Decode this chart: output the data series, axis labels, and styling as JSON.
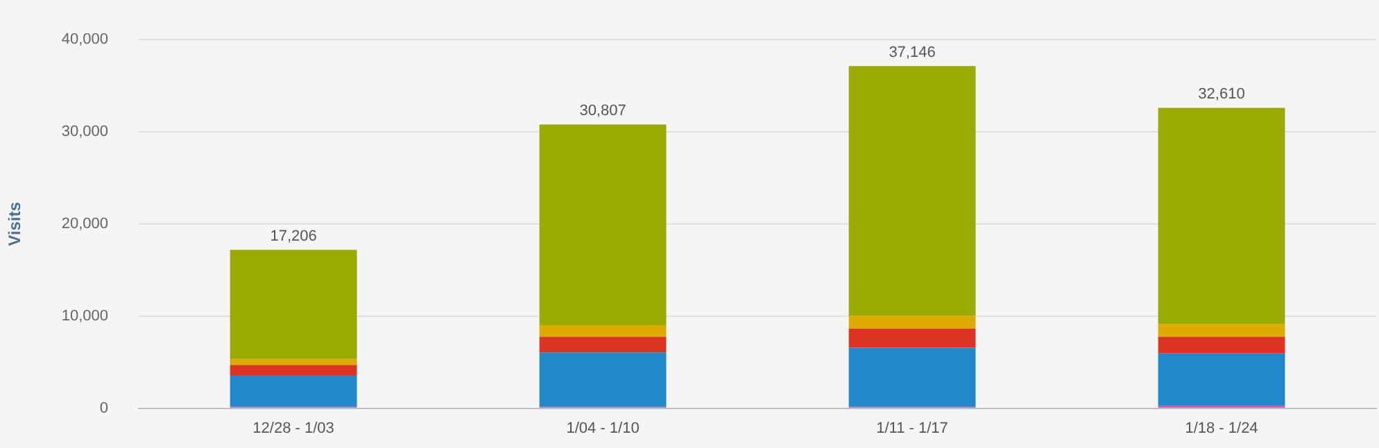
{
  "chart_data": {
    "type": "bar",
    "stacked": true,
    "ylabel": "Visits",
    "categories": [
      "12/28 - 1/03",
      "1/04 - 1/10",
      "1/11 - 1/17",
      "1/18 - 1/24"
    ],
    "series": [
      {
        "color": "#d6469a",
        "values": [
          150,
          150,
          150,
          250
        ]
      },
      {
        "color": "#2288cc",
        "values": [
          3440,
          5910,
          6410,
          5700
        ]
      },
      {
        "color": "#dd3322",
        "values": [
          1110,
          1710,
          2080,
          1820
        ]
      },
      {
        "color": "#ddaa00",
        "values": [
          650,
          1250,
          1410,
          1370
        ]
      },
      {
        "color": "#99aa00",
        "values": [
          11856,
          21787,
          27096,
          23470
        ]
      }
    ],
    "totals": [
      "17,206",
      "30,807",
      "37,146",
      "32,610"
    ],
    "ylim": [
      0,
      40000
    ],
    "yticks": [
      {
        "value": 0,
        "label": "0"
      },
      {
        "value": 10000,
        "label": "10,000"
      },
      {
        "value": 20000,
        "label": "20,000"
      },
      {
        "value": 30000,
        "label": "30,000"
      },
      {
        "value": 40000,
        "label": "40,000"
      }
    ],
    "grid": "y",
    "legend": false
  }
}
